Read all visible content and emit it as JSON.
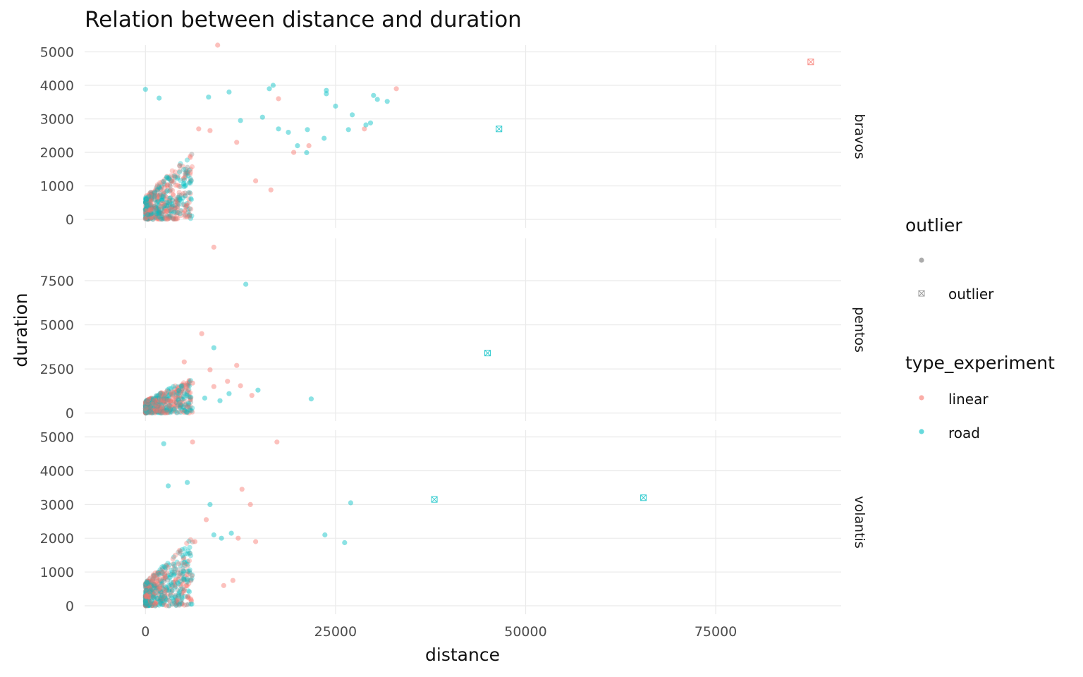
{
  "chart_data": {
    "type": "scatter",
    "title": "Relation between distance and duration",
    "xlabel": "distance",
    "ylabel": "duration",
    "xlim": [
      -8000,
      91500
    ],
    "x_ticks": [
      0,
      25000,
      50000,
      75000
    ],
    "grid": true,
    "colors": {
      "linear": "#F8766D",
      "road": "#00BFC4",
      "neutral": "#888888",
      "gridline": "#ebebeb"
    },
    "panels": [
      {
        "name": "bravos",
        "ylim": [
          -250,
          5200
        ],
        "y_ticks": [
          0,
          1000,
          2000,
          3000,
          4000,
          5000
        ],
        "normal_points": {
          "linear": [
            [
              9500,
              5200
            ],
            [
              17500,
              3600
            ],
            [
              33000,
              3900
            ],
            [
              28800,
              2700
            ],
            [
              19500,
              2000
            ],
            [
              21500,
              2200
            ],
            [
              14500,
              1150
            ],
            [
              16500,
              880
            ],
            [
              12000,
              2300
            ],
            [
              8500,
              2650
            ],
            [
              7000,
              2700
            ]
          ],
          "road": [
            [
              16800,
              4000
            ],
            [
              16300,
              3900
            ],
            [
              11000,
              3800
            ],
            [
              8300,
              3650
            ],
            [
              1800,
              3620
            ],
            [
              0,
              3880
            ],
            [
              23800,
              3850
            ],
            [
              23800,
              3750
            ],
            [
              25000,
              3380
            ],
            [
              27200,
              3120
            ],
            [
              30000,
              3700
            ],
            [
              30500,
              3580
            ],
            [
              31800,
              3520
            ],
            [
              29000,
              2820
            ],
            [
              29600,
              2880
            ],
            [
              26700,
              2680
            ],
            [
              23500,
              2420
            ],
            [
              21300,
              2680
            ],
            [
              21200,
              1990
            ],
            [
              15400,
              3050
            ],
            [
              17500,
              2700
            ],
            [
              12500,
              2950
            ],
            [
              18800,
              2600
            ],
            [
              20000,
              2200
            ]
          ]
        },
        "outliers": {
          "linear": [
            [
              87500,
              4700
            ]
          ],
          "road": [
            [
              46500,
              2700
            ]
          ]
        }
      },
      {
        "name": "pentos",
        "ylim": [
          -450,
          9900
        ],
        "y_ticks": [
          0,
          2500,
          5000,
          7500
        ],
        "normal_points": {
          "linear": [
            [
              9000,
              9400
            ],
            [
              7400,
              4500
            ],
            [
              5100,
              2900
            ],
            [
              12000,
              2700
            ],
            [
              8500,
              2450
            ],
            [
              10800,
              1800
            ],
            [
              12500,
              1550
            ],
            [
              14000,
              1000
            ],
            [
              9000,
              1500
            ],
            [
              6200,
              1700
            ]
          ],
          "road": [
            [
              13200,
              7300
            ],
            [
              9000,
              3700
            ],
            [
              14800,
              1300
            ],
            [
              21800,
              800
            ],
            [
              9800,
              700
            ],
            [
              7800,
              850
            ],
            [
              11000,
              1100
            ]
          ]
        },
        "outliers": {
          "linear": [],
          "road": [
            [
              45000,
              3400
            ]
          ]
        }
      },
      {
        "name": "volantis",
        "ylim": [
          -250,
          5200
        ],
        "y_ticks": [
          0,
          1000,
          2000,
          3000,
          4000,
          5000
        ],
        "normal_points": {
          "linear": [
            [
              17300,
              4850
            ],
            [
              6200,
              4850
            ],
            [
              12700,
              3450
            ],
            [
              13800,
              3000
            ],
            [
              12200,
              2000
            ],
            [
              14500,
              1900
            ],
            [
              10300,
              600
            ],
            [
              11500,
              750
            ],
            [
              8000,
              2550
            ],
            [
              6500,
              1900
            ]
          ],
          "road": [
            [
              2400,
              4800
            ],
            [
              5500,
              3650
            ],
            [
              3000,
              3550
            ],
            [
              27000,
              3050
            ],
            [
              23600,
              2100
            ],
            [
              26200,
              1870
            ],
            [
              11300,
              2150
            ],
            [
              8500,
              3000
            ],
            [
              10000,
              2000
            ],
            [
              9000,
              2100
            ]
          ]
        },
        "outliers": {
          "linear": [],
          "road": [
            [
              38000,
              3150
            ],
            [
              65500,
              3200
            ]
          ]
        }
      }
    ],
    "legend": {
      "placement": "right",
      "outlier": {
        "title": "outlier",
        "entries": [
          "",
          "outlier"
        ]
      },
      "type_experiment": {
        "title": "type_experiment",
        "entries": [
          "linear",
          "road"
        ]
      }
    }
  }
}
